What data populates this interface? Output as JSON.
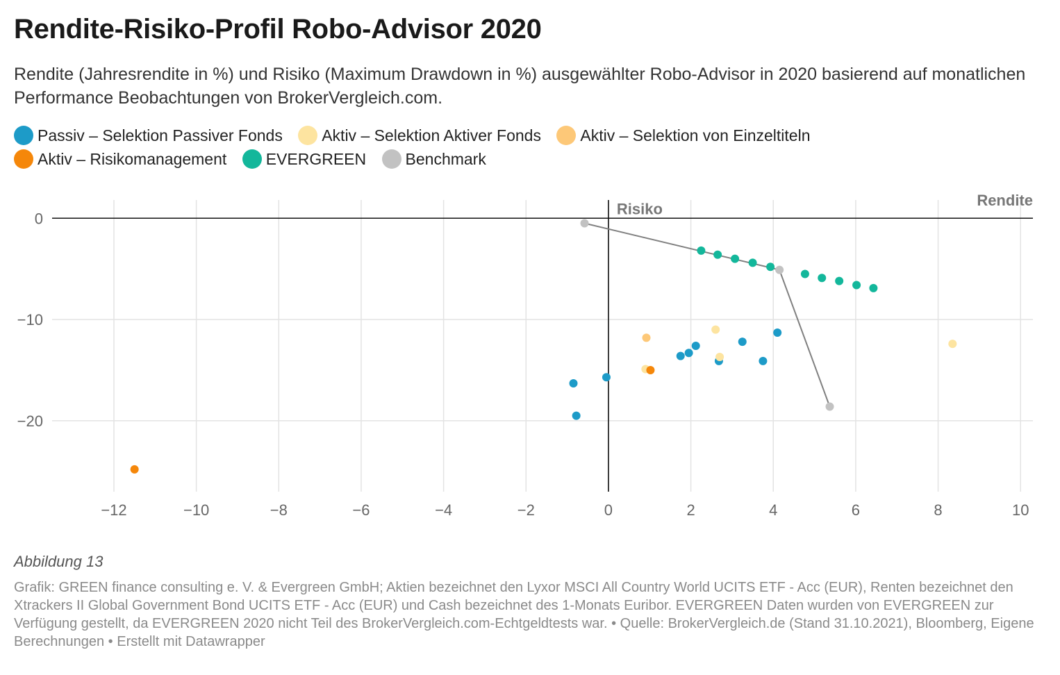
{
  "title": "Rendite-Risiko-Profil Robo-Advisor 2020",
  "subtitle": "Rendite (Jahresrendite in %) und Risiko (Maximum Drawdown in %) ausgewählter Robo-Advisor in 2020 basierend auf monatlichen Performance Beobachtungen von BrokerVergleich.com.",
  "legend": [
    {
      "label": "Passiv – Selektion Passiver Fonds",
      "color": "#1d9bc8"
    },
    {
      "label": "Aktiv – Selektion Aktiver Fonds",
      "color": "#fde4a0"
    },
    {
      "label": "Aktiv – Selektion von Einzeltiteln",
      "color": "#fdc878"
    },
    {
      "label": "Aktiv – Risikomanagement",
      "color": "#f5870a"
    },
    {
      "label": "EVERGREEN",
      "color": "#13b79b"
    },
    {
      "label": "Benchmark",
      "color": "#c2c2c2"
    }
  ],
  "caption": "Abbildung 13",
  "notes": "Grafik: GREEN finance consulting e. V. & Evergreen GmbH; Aktien bezeichnet den Lyxor MSCI All Country World UCITS ETF - Acc (EUR), Renten bezeichnet den Xtrackers II Global Government Bond UCITS ETF - Acc (EUR) und Cash bezeichnet des 1-Monats Euribor. EVERGREEN Daten wurden von EVERGREEN zur Verfügung gestellt, da EVERGREEN 2020 nicht Teil des BrokerVergleich.com-Echtgeldtests war. • Quelle: BrokerVergleich.de (Stand 31.10.2021), Bloomberg, Eigene Berechnungen • Erstellt mit Datawrapper",
  "chart_data": {
    "type": "scatter",
    "xlabel": "Rendite",
    "ylabel": "Risiko",
    "xlim": [
      -13.5,
      10.3
    ],
    "ylim": [
      -27,
      1.8
    ],
    "xticks": [
      -12,
      -10,
      -8,
      -6,
      -4,
      -2,
      0,
      2,
      4,
      6,
      8,
      10
    ],
    "yticks": [
      0,
      -10,
      -20
    ],
    "grid": true,
    "legend_position": "top",
    "series": [
      {
        "name": "Passiv – Selektion Passiver Fonds",
        "color": "#1d9bc8",
        "points": [
          [
            -0.85,
            -16.3
          ],
          [
            -0.78,
            -19.5
          ],
          [
            -0.05,
            -15.7
          ],
          [
            1.75,
            -13.6
          ],
          [
            1.95,
            -13.3
          ],
          [
            2.12,
            -12.6
          ],
          [
            2.68,
            -14.1
          ],
          [
            3.25,
            -12.2
          ],
          [
            3.75,
            -14.1
          ],
          [
            4.1,
            -11.3
          ]
        ]
      },
      {
        "name": "Aktiv – Selektion Aktiver Fonds",
        "color": "#fde4a0",
        "points": [
          [
            0.9,
            -14.9
          ],
          [
            2.6,
            -11.0
          ],
          [
            2.7,
            -13.7
          ],
          [
            8.35,
            -12.4
          ]
        ]
      },
      {
        "name": "Aktiv – Selektion von Einzeltiteln",
        "color": "#fdc878",
        "points": [
          [
            0.92,
            -11.8
          ]
        ]
      },
      {
        "name": "Aktiv – Risikomanagement",
        "color": "#f5870a",
        "points": [
          [
            -11.5,
            -24.8
          ],
          [
            1.02,
            -15.0
          ]
        ]
      },
      {
        "name": "EVERGREEN",
        "color": "#13b79b",
        "points": [
          [
            2.25,
            -3.2
          ],
          [
            2.65,
            -3.6
          ],
          [
            3.07,
            -4.0
          ],
          [
            3.5,
            -4.4
          ],
          [
            3.93,
            -4.8
          ],
          [
            4.77,
            -5.5
          ],
          [
            5.18,
            -5.9
          ],
          [
            5.6,
            -6.2
          ],
          [
            6.02,
            -6.6
          ],
          [
            6.43,
            -6.9
          ]
        ]
      },
      {
        "name": "Benchmark",
        "color": "#c2c2c2",
        "points": [
          [
            -0.58,
            -0.5
          ],
          [
            4.15,
            -5.1
          ],
          [
            5.37,
            -18.6
          ]
        ],
        "line": true,
        "line_color": "#808080"
      }
    ]
  }
}
